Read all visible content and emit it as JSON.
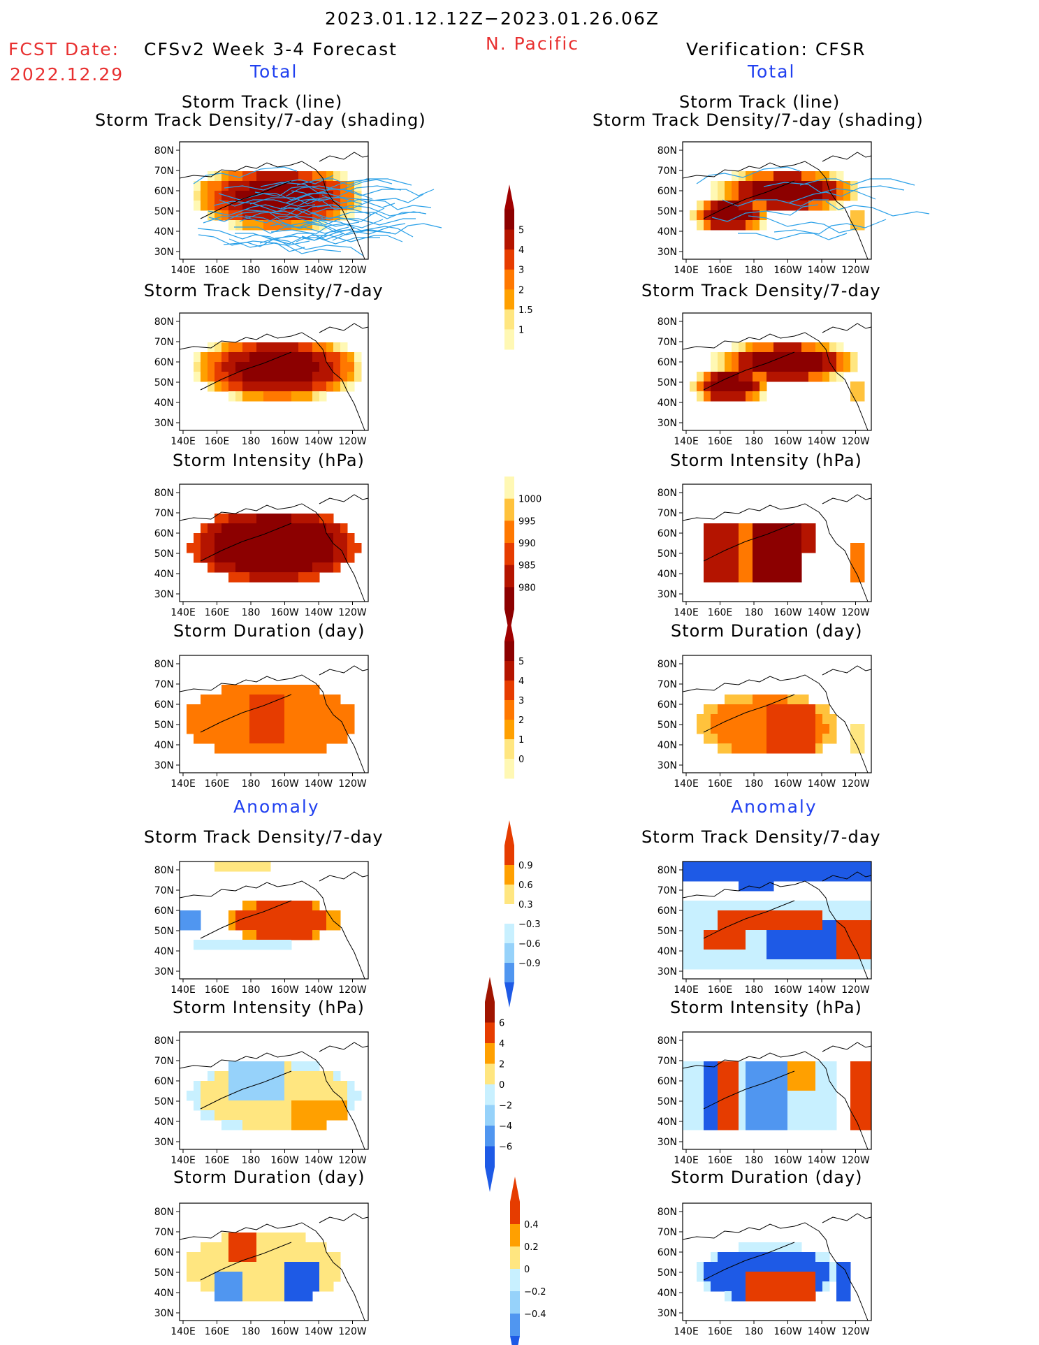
{
  "header": {
    "period": "2023.01.12.12Z−2023.01.26.06Z",
    "fcst_label": "FCST Date:",
    "fcst_date": "2022.12.29",
    "model_title": "CFSv2 Week 3-4 Forecast",
    "region": "N. Pacific",
    "verification_title": "Verification: CFSR",
    "left_total": "Total",
    "right_total": "Total",
    "left_anomaly": "Anomaly",
    "right_anomaly": "Anomaly"
  },
  "panel_titles": {
    "track_line": "Storm Track (line)",
    "track_shading": "Storm Track Density/7-day (shading)",
    "density": "Storm Track Density/7-day",
    "intensity": "Storm Intensity (hPa)",
    "duration": "Storm Duration (day)"
  },
  "axes": {
    "lat_ticks": [
      "80N",
      "70N",
      "60N",
      "50N",
      "40N",
      "30N"
    ],
    "lon_ticks": [
      "140E",
      "160E",
      "180",
      "160W",
      "140W",
      "120W"
    ]
  },
  "colors": {
    "total_scale": [
      "#fff8b4",
      "#ffe680",
      "#ffc23c",
      "#ffa000",
      "#ff7800",
      "#e63c00",
      "#b41400",
      "#8c0000"
    ],
    "anom_pos": [
      "#ffe680",
      "#ffa000",
      "#e63c00",
      "#a01400"
    ],
    "anom_neg": [
      "#c8f0ff",
      "#96d2fa",
      "#5096f0",
      "#1e5ae6",
      "#1e5adc"
    ]
  },
  "chart_data": [
    {
      "type": "heatmap",
      "name": "forecast-total-track",
      "title": "Storm Track (line)",
      "subtitle": "Storm Track Density/7-day (shading)",
      "colorbar": {
        "levels": [
          "1",
          "1.5",
          "2",
          "3",
          "4",
          "5"
        ]
      }
    },
    {
      "type": "heatmap",
      "name": "verification-total-track",
      "title": "Storm Track (line)",
      "subtitle": "Storm Track Density/7-day (shading)"
    },
    {
      "type": "heatmap",
      "name": "forecast-total-density",
      "title": "Storm Track Density/7-day"
    },
    {
      "type": "heatmap",
      "name": "verification-total-density",
      "title": "Storm Track Density/7-day"
    },
    {
      "type": "heatmap",
      "name": "forecast-total-intensity",
      "title": "Storm Intensity (hPa)",
      "colorbar": {
        "levels": [
          "1000",
          "995",
          "990",
          "985",
          "980"
        ]
      }
    },
    {
      "type": "heatmap",
      "name": "verification-total-intensity",
      "title": "Storm Intensity (hPa)"
    },
    {
      "type": "heatmap",
      "name": "forecast-total-duration",
      "title": "Storm Duration (day)",
      "colorbar": {
        "levels": [
          "5",
          "4",
          "3",
          "2",
          "1",
          "0"
        ]
      }
    },
    {
      "type": "heatmap",
      "name": "verification-total-duration",
      "title": "Storm Duration (day)"
    },
    {
      "type": "heatmap",
      "name": "forecast-anomaly-density",
      "title": "Storm Track Density/7-day",
      "colorbar": {
        "levels": [
          "0.9",
          "0.6",
          "0.3",
          "−0.3",
          "−0.6",
          "−0.9"
        ]
      }
    },
    {
      "type": "heatmap",
      "name": "verification-anomaly-density",
      "title": "Storm Track Density/7-day"
    },
    {
      "type": "heatmap",
      "name": "forecast-anomaly-intensity",
      "title": "Storm Intensity (hPa)",
      "colorbar": {
        "levels": [
          "6",
          "4",
          "2",
          "0",
          "−2",
          "−4",
          "−6"
        ]
      }
    },
    {
      "type": "heatmap",
      "name": "verification-anomaly-intensity",
      "title": "Storm Intensity (hPa)"
    },
    {
      "type": "heatmap",
      "name": "forecast-anomaly-duration",
      "title": "Storm Duration (day)",
      "colorbar": {
        "levels": [
          "0.4",
          "0.2",
          "0",
          "−0.2",
          "−0.4"
        ]
      }
    },
    {
      "type": "heatmap",
      "name": "verification-anomaly-duration",
      "title": "Storm Duration (day)"
    }
  ]
}
